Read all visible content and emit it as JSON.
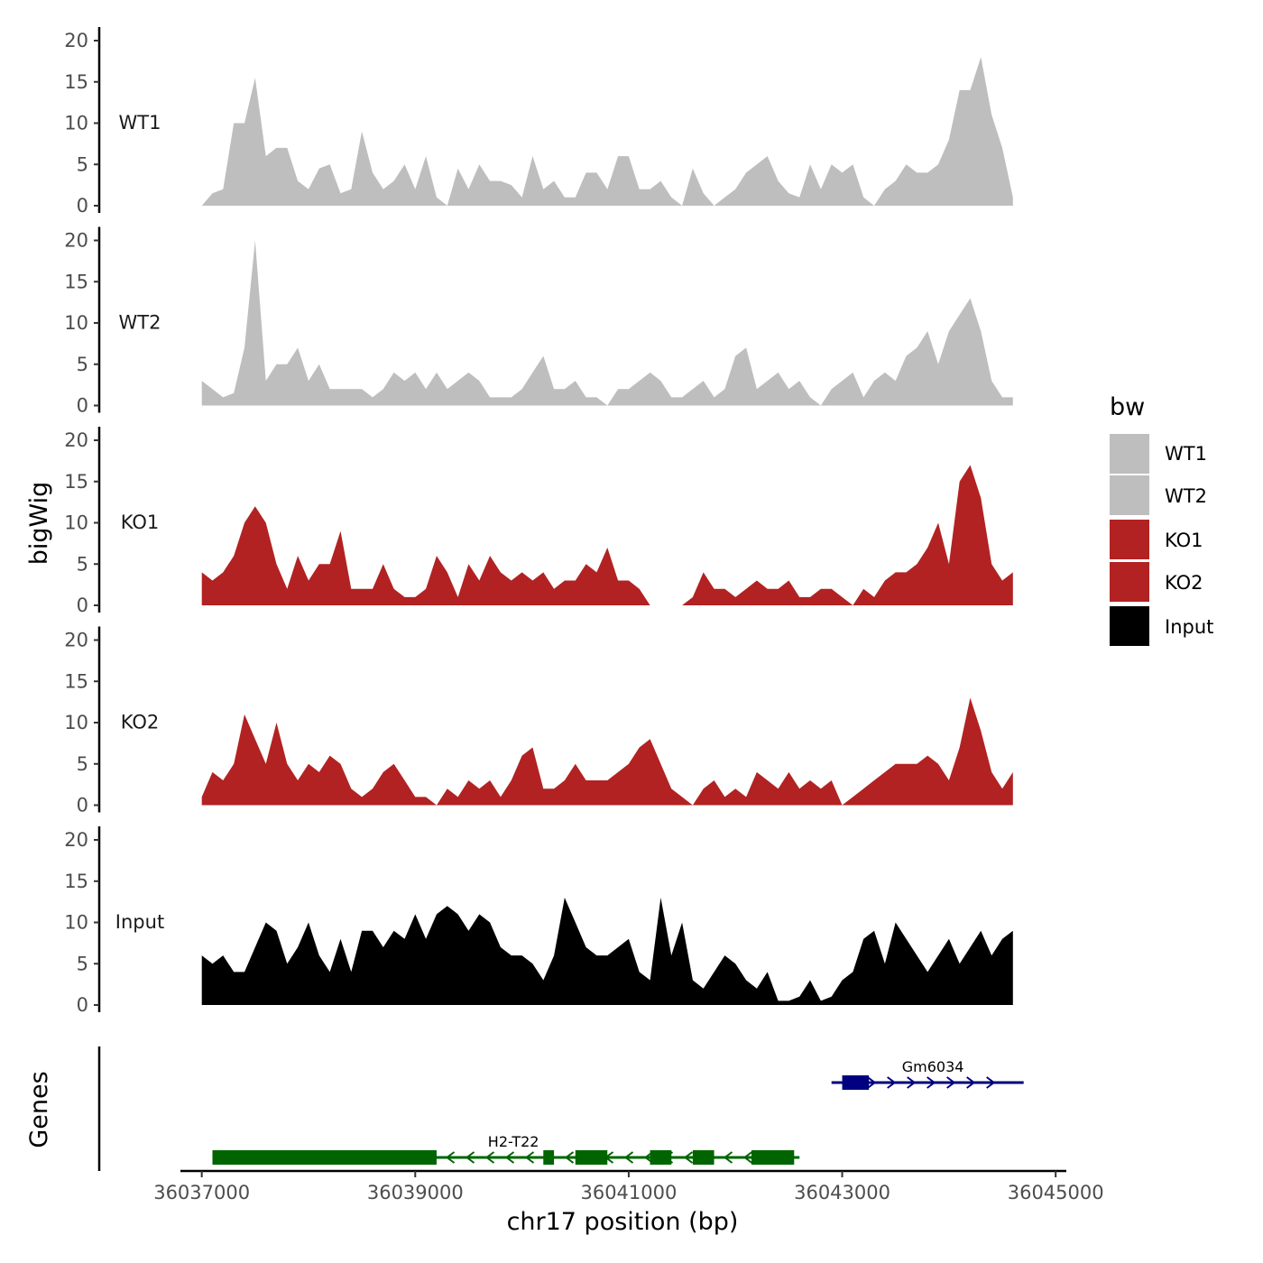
{
  "chart_data": {
    "type": "area",
    "ylabel": "bigWig",
    "xlabel": "chr17 position (bp)",
    "gene_panel_label": "Genes",
    "xlim": [
      36036800,
      36045100
    ],
    "ylim": [
      0,
      21
    ],
    "y_ticks": [
      0,
      5,
      10,
      15,
      20
    ],
    "x_ticks": [
      36037000,
      36039000,
      36041000,
      36043000,
      36045000
    ],
    "x_tick_labels": [
      "36037000",
      "36039000",
      "36041000",
      "36043000",
      "36045000"
    ],
    "legend": {
      "title": "bw",
      "entries": [
        {
          "label": "WT1",
          "color": "#bebebe"
        },
        {
          "label": "WT2",
          "color": "#bebebe"
        },
        {
          "label": "KO1",
          "color": "#b22222"
        },
        {
          "label": "KO2",
          "color": "#b22222"
        },
        {
          "label": "Input",
          "color": "#000000"
        }
      ]
    },
    "tracks": [
      {
        "name": "WT1",
        "color": "#bebebe",
        "x": [
          36037000,
          36037100,
          36037200,
          36037300,
          36037400,
          36037500,
          36037600,
          36037700,
          36037800,
          36037900,
          36038000,
          36038100,
          36038200,
          36038300,
          36038400,
          36038500,
          36038600,
          36038700,
          36038800,
          36038900,
          36039000,
          36039100,
          36039200,
          36039300,
          36039400,
          36039500,
          36039600,
          36039700,
          36039800,
          36039900,
          36040000,
          36040100,
          36040200,
          36040300,
          36040400,
          36040500,
          36040600,
          36040700,
          36040800,
          36040900,
          36041000,
          36041100,
          36041200,
          36041300,
          36041400,
          36041500,
          36041600,
          36041700,
          36041800,
          36041900,
          36042000,
          36042100,
          36042200,
          36042300,
          36042400,
          36042500,
          36042600,
          36042700,
          36042800,
          36042900,
          36043000,
          36043100,
          36043200,
          36043300,
          36043400,
          36043500,
          36043600,
          36043700,
          36043800,
          36043900,
          36044000,
          36044100,
          36044200,
          36044300,
          36044400,
          36044500,
          36044600
        ],
        "y": [
          0,
          1.5,
          2,
          10,
          10,
          15.5,
          6,
          7,
          7,
          3,
          2,
          4.5,
          5,
          1.5,
          2,
          9,
          4,
          2,
          3,
          5,
          2,
          6,
          1,
          0,
          4.5,
          2,
          5,
          3,
          3,
          2.5,
          1,
          6,
          2,
          3,
          1,
          1,
          4,
          4,
          2,
          6,
          6,
          2,
          2,
          3,
          1,
          0,
          4.5,
          1.5,
          0,
          1,
          2,
          4,
          5,
          6,
          3,
          1.5,
          1,
          5,
          2,
          5,
          4,
          5,
          1,
          0,
          2,
          3,
          5,
          4,
          4,
          5,
          8,
          14,
          14,
          18,
          11,
          7,
          1
        ]
      },
      {
        "name": "WT2",
        "color": "#bebebe",
        "x": [
          36037000,
          36037100,
          36037200,
          36037300,
          36037400,
          36037500,
          36037600,
          36037700,
          36037800,
          36037900,
          36038000,
          36038100,
          36038200,
          36038300,
          36038400,
          36038500,
          36038600,
          36038700,
          36038800,
          36038900,
          36039000,
          36039100,
          36039200,
          36039300,
          36039400,
          36039500,
          36039600,
          36039700,
          36039800,
          36039900,
          36040000,
          36040100,
          36040200,
          36040300,
          36040400,
          36040500,
          36040600,
          36040700,
          36040800,
          36040900,
          36041000,
          36041100,
          36041200,
          36041300,
          36041400,
          36041500,
          36041600,
          36041700,
          36041800,
          36041900,
          36042000,
          36042100,
          36042200,
          36042300,
          36042400,
          36042500,
          36042600,
          36042700,
          36042800,
          36042900,
          36043000,
          36043100,
          36043200,
          36043300,
          36043400,
          36043500,
          36043600,
          36043700,
          36043800,
          36043900,
          36044000,
          36044100,
          36044200,
          36044300,
          36044400,
          36044500,
          36044600
        ],
        "y": [
          3,
          2,
          1,
          1.5,
          7,
          20,
          3,
          5,
          5,
          7,
          3,
          5,
          2,
          2,
          2,
          2,
          1,
          2,
          4,
          3,
          4,
          2,
          4,
          2,
          3,
          4,
          3,
          1,
          1,
          1,
          2,
          4,
          6,
          2,
          2,
          3,
          1,
          1,
          0,
          2,
          2,
          3,
          4,
          3,
          1,
          1,
          2,
          3,
          1,
          2,
          6,
          7,
          2,
          3,
          4,
          2,
          3,
          1,
          0,
          2,
          3,
          4,
          1,
          3,
          4,
          3,
          6,
          7,
          9,
          5,
          9,
          11,
          13,
          9,
          3,
          1,
          1
        ]
      },
      {
        "name": "KO1",
        "color": "#b22222",
        "x": [
          36037000,
          36037100,
          36037200,
          36037300,
          36037400,
          36037500,
          36037600,
          36037700,
          36037800,
          36037900,
          36038000,
          36038100,
          36038200,
          36038300,
          36038400,
          36038500,
          36038600,
          36038700,
          36038800,
          36038900,
          36039000,
          36039100,
          36039200,
          36039300,
          36039400,
          36039500,
          36039600,
          36039700,
          36039800,
          36039900,
          36040000,
          36040100,
          36040200,
          36040300,
          36040400,
          36040500,
          36040600,
          36040700,
          36040800,
          36040900,
          36041000,
          36041100,
          36041200,
          36041300,
          36041400,
          36041500,
          36041600,
          36041700,
          36041800,
          36041900,
          36042000,
          36042100,
          36042200,
          36042300,
          36042400,
          36042500,
          36042600,
          36042700,
          36042800,
          36042900,
          36043000,
          36043100,
          36043200,
          36043300,
          36043400,
          36043500,
          36043600,
          36043700,
          36043800,
          36043900,
          36044000,
          36044100,
          36044200,
          36044300,
          36044400,
          36044500,
          36044600
        ],
        "y": [
          4,
          3,
          4,
          6,
          10,
          12,
          10,
          5,
          2,
          6,
          3,
          5,
          5,
          9,
          2,
          2,
          2,
          5,
          2,
          1,
          1,
          2,
          6,
          4,
          1,
          5,
          3,
          6,
          4,
          3,
          4,
          3,
          4,
          2,
          3,
          3,
          5,
          4,
          7,
          3,
          3,
          2,
          0,
          0,
          0,
          0,
          1,
          4,
          2,
          2,
          1,
          2,
          3,
          2,
          2,
          3,
          1,
          1,
          2,
          2,
          1,
          0,
          2,
          1,
          3,
          4,
          4,
          5,
          7,
          10,
          5,
          15,
          17,
          13,
          5,
          3,
          4
        ]
      },
      {
        "name": "KO2",
        "color": "#b22222",
        "x": [
          36037000,
          36037100,
          36037200,
          36037300,
          36037400,
          36037500,
          36037600,
          36037700,
          36037800,
          36037900,
          36038000,
          36038100,
          36038200,
          36038300,
          36038400,
          36038500,
          36038600,
          36038700,
          36038800,
          36038900,
          36039000,
          36039100,
          36039200,
          36039300,
          36039400,
          36039500,
          36039600,
          36039700,
          36039800,
          36039900,
          36040000,
          36040100,
          36040200,
          36040300,
          36040400,
          36040500,
          36040600,
          36040700,
          36040800,
          36040900,
          36041000,
          36041100,
          36041200,
          36041300,
          36041400,
          36041500,
          36041600,
          36041700,
          36041800,
          36041900,
          36042000,
          36042100,
          36042200,
          36042300,
          36042400,
          36042500,
          36042600,
          36042700,
          36042800,
          36042900,
          36043000,
          36043100,
          36043200,
          36043300,
          36043400,
          36043500,
          36043600,
          36043700,
          36043800,
          36043900,
          36044000,
          36044100,
          36044200,
          36044300,
          36044400,
          36044500,
          36044600
        ],
        "y": [
          1,
          4,
          3,
          5,
          11,
          8,
          5,
          10,
          5,
          3,
          5,
          4,
          6,
          5,
          2,
          1,
          2,
          4,
          5,
          3,
          1,
          1,
          0,
          2,
          1,
          3,
          2,
          3,
          1,
          3,
          6,
          7,
          2,
          2,
          3,
          5,
          3,
          3,
          3,
          4,
          5,
          7,
          8,
          5,
          2,
          1,
          0,
          2,
          3,
          1,
          2,
          1,
          4,
          3,
          2,
          4,
          2,
          3,
          2,
          3,
          0,
          1,
          2,
          3,
          4,
          5,
          5,
          5,
          6,
          5,
          3,
          7,
          13,
          9,
          4,
          2,
          4
        ]
      },
      {
        "name": "Input",
        "color": "#000000",
        "x": [
          36037000,
          36037100,
          36037200,
          36037300,
          36037400,
          36037500,
          36037600,
          36037700,
          36037800,
          36037900,
          36038000,
          36038100,
          36038200,
          36038300,
          36038400,
          36038500,
          36038600,
          36038700,
          36038800,
          36038900,
          36039000,
          36039100,
          36039200,
          36039300,
          36039400,
          36039500,
          36039600,
          36039700,
          36039800,
          36039900,
          36040000,
          36040100,
          36040200,
          36040300,
          36040400,
          36040500,
          36040600,
          36040700,
          36040800,
          36040900,
          36041000,
          36041100,
          36041200,
          36041300,
          36041400,
          36041500,
          36041600,
          36041700,
          36041800,
          36041900,
          36042000,
          36042100,
          36042200,
          36042300,
          36042400,
          36042500,
          36042600,
          36042700,
          36042800,
          36042900,
          36043000,
          36043100,
          36043200,
          36043300,
          36043400,
          36043500,
          36043600,
          36043700,
          36043800,
          36043900,
          36044000,
          36044100,
          36044200,
          36044300,
          36044400,
          36044500,
          36044600
        ],
        "y": [
          6,
          5,
          6,
          4,
          4,
          7,
          10,
          9,
          5,
          7,
          10,
          6,
          4,
          8,
          4,
          9,
          9,
          7,
          9,
          8,
          11,
          8,
          11,
          12,
          11,
          9,
          11,
          10,
          7,
          6,
          6,
          5,
          3,
          6,
          13,
          10,
          7,
          6,
          6,
          7,
          8,
          4,
          3,
          13,
          6,
          10,
          3,
          2,
          4,
          6,
          5,
          3,
          2,
          4,
          0.5,
          0.5,
          1,
          3,
          0.5,
          1,
          3,
          4,
          8,
          9,
          5,
          10,
          8,
          6,
          4,
          6,
          8,
          5,
          7,
          9,
          6,
          8,
          9
        ]
      }
    ],
    "genes": [
      {
        "name": "H2-T22",
        "strand": "-",
        "color": "#006400",
        "row": 2,
        "start": 36037100,
        "end": 36042600,
        "exons": [
          [
            36037100,
            36039200
          ],
          [
            36040200,
            36040300
          ],
          [
            36040500,
            36040800
          ],
          [
            36041200,
            36041400
          ],
          [
            36041600,
            36041800
          ],
          [
            36042150,
            36042550
          ]
        ]
      },
      {
        "name": "Gm6034",
        "strand": "+",
        "color": "#000080",
        "row": 1,
        "start": 36042900,
        "end": 36044700,
        "exons": [
          [
            36043000,
            36043250
          ]
        ]
      }
    ]
  }
}
